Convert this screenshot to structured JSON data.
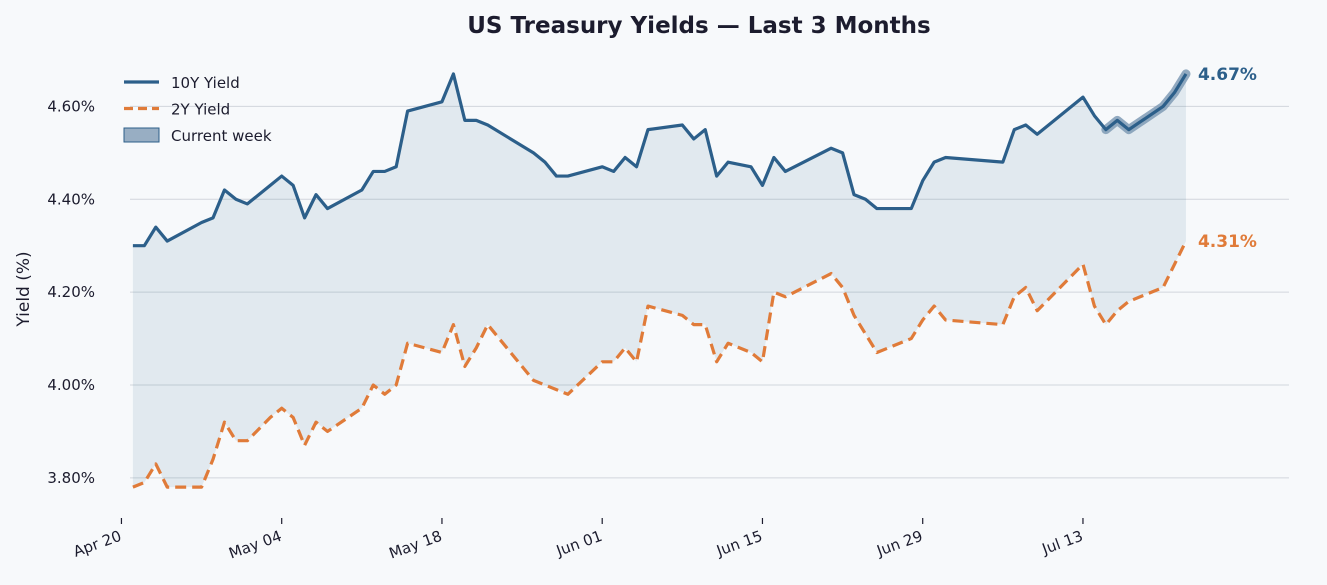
{
  "chart_data": {
    "type": "line",
    "title": "US Treasury Yields — Last 3 Months",
    "xlabel": "",
    "ylabel": "Yield (%)",
    "ylim": [
      3.72,
      4.7
    ],
    "yticks": [
      3.8,
      4.0,
      4.2,
      4.4,
      4.6
    ],
    "ytick_labels": [
      "3.80%",
      "4.00%",
      "4.20%",
      "4.40%",
      "4.60%"
    ],
    "xlim": [
      "2024-04-19",
      "2024-07-31"
    ],
    "xticks": [
      "2024-04-20",
      "2024-05-04",
      "2024-05-18",
      "2024-06-01",
      "2024-06-15",
      "2024-06-29",
      "2024-07-13"
    ],
    "xtick_labels": [
      "Apr 20",
      "May 04",
      "May 18",
      "Jun 01",
      "Jun 15",
      "Jun 29",
      "Jul 13"
    ],
    "grid": "horizontal",
    "legend_position": "top-left",
    "x": [
      "2024-04-21",
      "2024-04-22",
      "2024-04-23",
      "2024-04-24",
      "2024-04-27",
      "2024-04-28",
      "2024-04-29",
      "2024-04-30",
      "2024-05-01",
      "2024-05-03",
      "2024-05-04",
      "2024-05-05",
      "2024-05-06",
      "2024-05-07",
      "2024-05-08",
      "2024-05-11",
      "2024-05-12",
      "2024-05-13",
      "2024-05-14",
      "2024-05-15",
      "2024-05-18",
      "2024-05-19",
      "2024-05-20",
      "2024-05-21",
      "2024-05-22",
      "2024-05-26",
      "2024-05-27",
      "2024-05-28",
      "2024-05-29",
      "2024-06-01",
      "2024-06-02",
      "2024-06-03",
      "2024-06-04",
      "2024-06-05",
      "2024-06-08",
      "2024-06-09",
      "2024-06-10",
      "2024-06-11",
      "2024-06-12",
      "2024-06-14",
      "2024-06-15",
      "2024-06-16",
      "2024-06-17",
      "2024-06-21",
      "2024-06-22",
      "2024-06-23",
      "2024-06-24",
      "2024-06-25",
      "2024-06-28",
      "2024-06-29",
      "2024-06-30",
      "2024-07-01",
      "2024-07-06",
      "2024-07-07",
      "2024-07-08",
      "2024-07-09",
      "2024-07-13",
      "2024-07-14",
      "2024-07-15",
      "2024-07-16",
      "2024-07-17",
      "2024-07-20",
      "2024-07-21",
      "2024-07-22"
    ],
    "series": [
      {
        "name": "10Y Yield",
        "color": "#2c5f8a",
        "style": "solid",
        "end_label": "4.67%",
        "values": [
          4.3,
          4.3,
          4.34,
          4.31,
          4.35,
          4.36,
          4.42,
          4.4,
          4.39,
          4.43,
          4.45,
          4.43,
          4.36,
          4.41,
          4.38,
          4.42,
          4.46,
          4.46,
          4.47,
          4.59,
          4.61,
          4.67,
          4.57,
          4.57,
          4.56,
          4.5,
          4.48,
          4.45,
          4.45,
          4.47,
          4.46,
          4.49,
          4.47,
          4.55,
          4.56,
          4.53,
          4.55,
          4.45,
          4.48,
          4.47,
          4.43,
          4.49,
          4.46,
          4.51,
          4.5,
          4.41,
          4.4,
          4.38,
          4.38,
          4.44,
          4.48,
          4.49,
          4.48,
          4.55,
          4.56,
          4.54,
          4.62,
          4.58,
          4.55,
          4.57,
          4.55,
          4.6,
          4.63,
          4.67
        ]
      },
      {
        "name": "2Y Yield",
        "color": "#e07b39",
        "style": "dashed",
        "end_label": "4.31%",
        "values": [
          3.78,
          3.79,
          3.83,
          3.78,
          3.78,
          3.84,
          3.92,
          3.88,
          3.88,
          3.93,
          3.95,
          3.93,
          3.87,
          3.92,
          3.9,
          3.95,
          4.0,
          3.98,
          4.0,
          4.09,
          4.07,
          4.13,
          4.04,
          4.08,
          4.13,
          4.01,
          4.0,
          3.99,
          3.98,
          4.05,
          4.05,
          4.08,
          4.05,
          4.17,
          4.15,
          4.13,
          4.13,
          4.05,
          4.09,
          4.07,
          4.05,
          4.2,
          4.19,
          4.24,
          4.21,
          4.15,
          4.11,
          4.07,
          4.1,
          4.14,
          4.17,
          4.14,
          4.13,
          4.19,
          4.21,
          4.16,
          4.26,
          4.17,
          4.13,
          4.16,
          4.18,
          4.21,
          4.26,
          4.31
        ]
      }
    ],
    "spread_fill": {
      "between": [
        "10Y Yield",
        "2Y Yield"
      ],
      "color": "#2c5f8a",
      "opacity": 0.1
    },
    "highlight": {
      "name": "Current week",
      "series": "10Y Yield",
      "from": "2024-07-15",
      "to": "2024-07-22",
      "color": "#7f9bb5"
    },
    "legend": [
      "10Y Yield",
      "2Y Yield",
      "Current week"
    ]
  }
}
